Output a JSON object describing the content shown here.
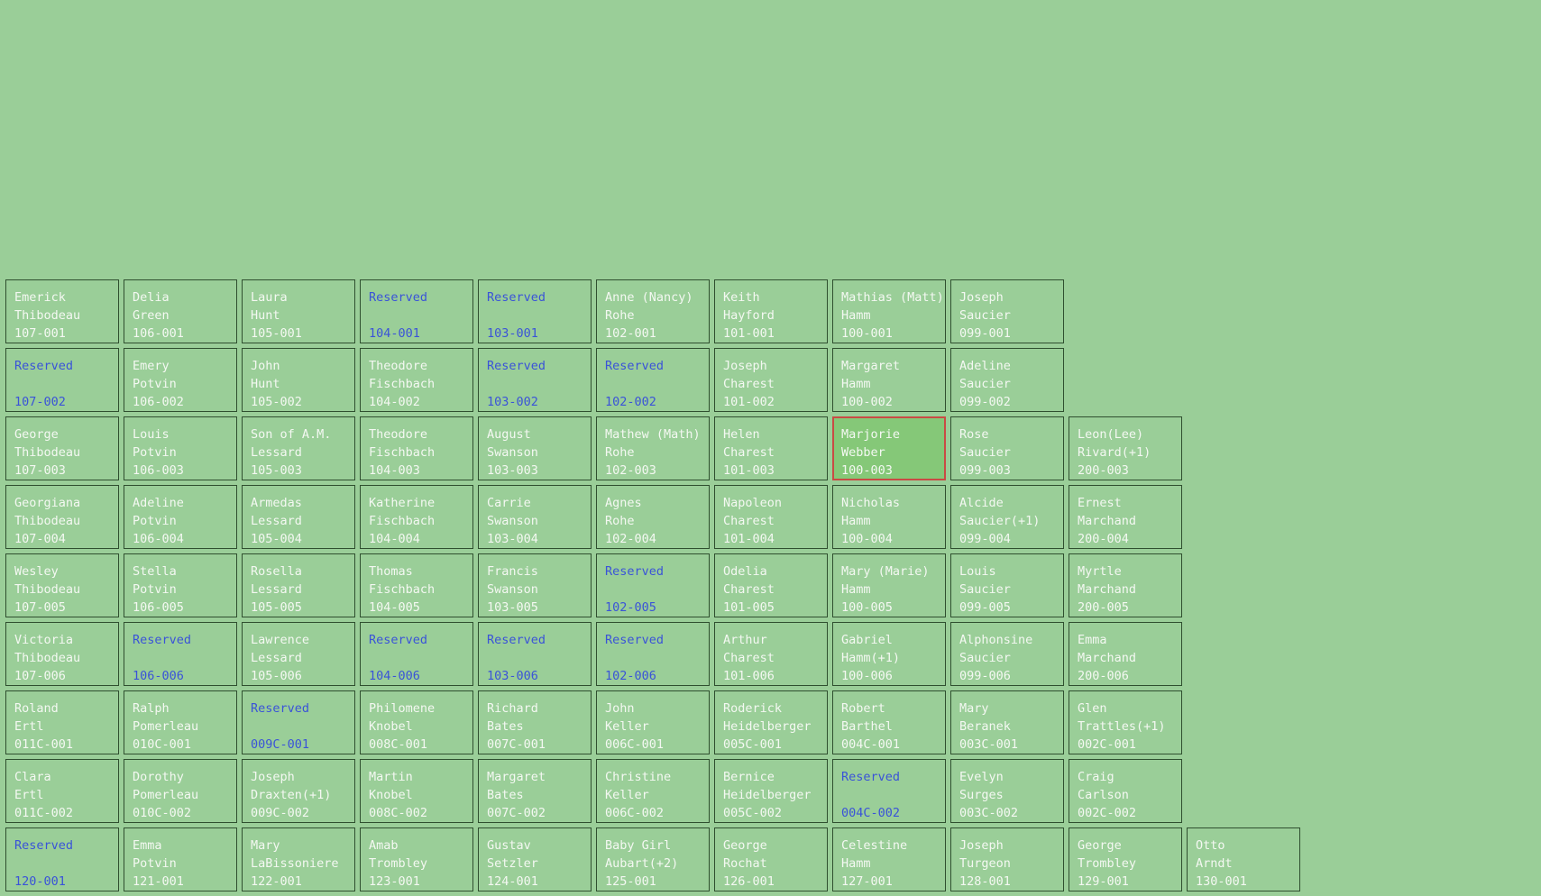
{
  "colors": {
    "background": "#9ace98",
    "border": "#2f4f2f",
    "text": "#f4f8f2",
    "reserved_text": "#3a53d8",
    "selected_fill": "#85c878",
    "selected_border": "#c94b44"
  },
  "rows": [
    {
      "plots": [
        {
          "col": 0,
          "first": "Emerick",
          "last": "Thibodeau",
          "id": "107-001"
        },
        {
          "col": 1,
          "first": "Delia",
          "last": "Green",
          "id": "106-001"
        },
        {
          "col": 2,
          "first": "Laura",
          "last": "Hunt",
          "id": "105-001"
        },
        {
          "col": 3,
          "first": "Reserved",
          "last": "",
          "id": "104-001",
          "reserved": true
        },
        {
          "col": 4,
          "first": "Reserved",
          "last": "",
          "id": "103-001",
          "reserved": true
        },
        {
          "col": 5,
          "first": "Anne (Nancy)",
          "last": "Rohe",
          "id": "102-001"
        },
        {
          "col": 6,
          "first": "Keith",
          "last": "Hayford",
          "id": "101-001"
        },
        {
          "col": 7,
          "first": "Mathias (Matt)",
          "last": "Hamm",
          "id": "100-001"
        },
        {
          "col": 8,
          "first": "Joseph",
          "last": "Saucier",
          "id": "099-001"
        }
      ]
    },
    {
      "plots": [
        {
          "col": 0,
          "first": "Reserved",
          "last": "",
          "id": "107-002",
          "reserved": true
        },
        {
          "col": 1,
          "first": "Emery",
          "last": "Potvin",
          "id": "106-002"
        },
        {
          "col": 2,
          "first": "John",
          "last": "Hunt",
          "id": "105-002"
        },
        {
          "col": 3,
          "first": "Theodore",
          "last": "Fischbach",
          "id": "104-002"
        },
        {
          "col": 4,
          "first": "Reserved",
          "last": "",
          "id": "103-002",
          "reserved": true
        },
        {
          "col": 5,
          "first": "Reserved",
          "last": "",
          "id": "102-002",
          "reserved": true
        },
        {
          "col": 6,
          "first": "Joseph",
          "last": "Charest",
          "id": "101-002"
        },
        {
          "col": 7,
          "first": "Margaret",
          "last": "Hamm",
          "id": "100-002"
        },
        {
          "col": 8,
          "first": "Adeline",
          "last": "Saucier",
          "id": "099-002"
        }
      ]
    },
    {
      "plots": [
        {
          "col": 0,
          "first": "George",
          "last": "Thibodeau",
          "id": "107-003"
        },
        {
          "col": 1,
          "first": "Louis",
          "last": "Potvin",
          "id": "106-003"
        },
        {
          "col": 2,
          "first": "Son of A.M.",
          "last": "Lessard",
          "id": "105-003"
        },
        {
          "col": 3,
          "first": "Theodore",
          "last": "Fischbach",
          "id": "104-003"
        },
        {
          "col": 4,
          "first": "August",
          "last": "Swanson",
          "id": "103-003"
        },
        {
          "col": 5,
          "first": "Mathew (Math)",
          "last": "Rohe",
          "id": "102-003"
        },
        {
          "col": 6,
          "first": "Helen",
          "last": "Charest",
          "id": "101-003"
        },
        {
          "col": 7,
          "first": "Marjorie",
          "last": "Webber",
          "id": "100-003",
          "selected": true
        },
        {
          "col": 8,
          "first": "Rose",
          "last": "Saucier",
          "id": "099-003"
        },
        {
          "col": 9,
          "first": "Leon(Lee)",
          "last": "Rivard(+1)",
          "id": "200-003"
        }
      ]
    },
    {
      "plots": [
        {
          "col": 0,
          "first": "Georgiana",
          "last": "Thibodeau",
          "id": "107-004"
        },
        {
          "col": 1,
          "first": "Adeline",
          "last": "Potvin",
          "id": "106-004"
        },
        {
          "col": 2,
          "first": "Armedas",
          "last": "Lessard",
          "id": "105-004"
        },
        {
          "col": 3,
          "first": "Katherine",
          "last": "Fischbach",
          "id": "104-004"
        },
        {
          "col": 4,
          "first": "Carrie",
          "last": "Swanson",
          "id": "103-004"
        },
        {
          "col": 5,
          "first": "Agnes",
          "last": "Rohe",
          "id": "102-004"
        },
        {
          "col": 6,
          "first": "Napoleon",
          "last": "Charest",
          "id": "101-004"
        },
        {
          "col": 7,
          "first": "Nicholas",
          "last": "Hamm",
          "id": "100-004"
        },
        {
          "col": 8,
          "first": "Alcide",
          "last": "Saucier(+1)",
          "id": "099-004"
        },
        {
          "col": 9,
          "first": "Ernest",
          "last": "Marchand",
          "id": "200-004"
        }
      ]
    },
    {
      "plots": [
        {
          "col": 0,
          "first": "Wesley",
          "last": "Thibodeau",
          "id": "107-005"
        },
        {
          "col": 1,
          "first": "Stella",
          "last": "Potvin",
          "id": "106-005"
        },
        {
          "col": 2,
          "first": "Rosella",
          "last": "Lessard",
          "id": "105-005"
        },
        {
          "col": 3,
          "first": "Thomas",
          "last": "Fischbach",
          "id": "104-005"
        },
        {
          "col": 4,
          "first": "Francis",
          "last": "Swanson",
          "id": "103-005"
        },
        {
          "col": 5,
          "first": "Reserved",
          "last": "",
          "id": "102-005",
          "reserved": true
        },
        {
          "col": 6,
          "first": "Odelia",
          "last": "Charest",
          "id": "101-005"
        },
        {
          "col": 7,
          "first": "Mary (Marie)",
          "last": "Hamm",
          "id": "100-005"
        },
        {
          "col": 8,
          "first": "Louis",
          "last": "Saucier",
          "id": "099-005"
        },
        {
          "col": 9,
          "first": "Myrtle",
          "last": "Marchand",
          "id": "200-005"
        }
      ]
    },
    {
      "plots": [
        {
          "col": 0,
          "first": "Victoria",
          "last": "Thibodeau",
          "id": "107-006"
        },
        {
          "col": 1,
          "first": "Reserved",
          "last": "",
          "id": "106-006",
          "reserved": true
        },
        {
          "col": 2,
          "first": "Lawrence",
          "last": "Lessard",
          "id": "105-006"
        },
        {
          "col": 3,
          "first": "Reserved",
          "last": "",
          "id": "104-006",
          "reserved": true
        },
        {
          "col": 4,
          "first": "Reserved",
          "last": "",
          "id": "103-006",
          "reserved": true
        },
        {
          "col": 5,
          "first": "Reserved",
          "last": "",
          "id": "102-006",
          "reserved": true
        },
        {
          "col": 6,
          "first": "Arthur",
          "last": "Charest",
          "id": "101-006"
        },
        {
          "col": 7,
          "first": "Gabriel",
          "last": "Hamm(+1)",
          "id": "100-006"
        },
        {
          "col": 8,
          "first": "Alphonsine",
          "last": "Saucier",
          "id": "099-006"
        },
        {
          "col": 9,
          "first": "Emma",
          "last": "Marchand",
          "id": "200-006"
        }
      ]
    },
    {
      "plots": [
        {
          "col": 0,
          "first": "Roland",
          "last": "Ertl",
          "id": "011C-001"
        },
        {
          "col": 1,
          "first": "Ralph",
          "last": "Pomerleau",
          "id": "010C-001"
        },
        {
          "col": 2,
          "first": "Reserved",
          "last": "",
          "id": "009C-001",
          "reserved": true
        },
        {
          "col": 3,
          "first": "Philomene",
          "last": "Knobel",
          "id": "008C-001"
        },
        {
          "col": 4,
          "first": "Richard",
          "last": "Bates",
          "id": "007C-001"
        },
        {
          "col": 5,
          "first": "John",
          "last": "Keller",
          "id": "006C-001"
        },
        {
          "col": 6,
          "first": "Roderick",
          "last": "Heidelberger",
          "id": "005C-001"
        },
        {
          "col": 7,
          "first": "Robert",
          "last": "Barthel",
          "id": "004C-001"
        },
        {
          "col": 8,
          "first": "Mary",
          "last": "Beranek",
          "id": "003C-001"
        },
        {
          "col": 9,
          "first": "Glen",
          "last": "Trattles(+1)",
          "id": "002C-001"
        }
      ]
    },
    {
      "plots": [
        {
          "col": 0,
          "first": "Clara",
          "last": "Ertl",
          "id": "011C-002"
        },
        {
          "col": 1,
          "first": "Dorothy",
          "last": "Pomerleau",
          "id": "010C-002"
        },
        {
          "col": 2,
          "first": "Joseph",
          "last": "Draxten(+1)",
          "id": "009C-002"
        },
        {
          "col": 3,
          "first": "Martin",
          "last": "Knobel",
          "id": "008C-002"
        },
        {
          "col": 4,
          "first": "Margaret",
          "last": "Bates",
          "id": "007C-002"
        },
        {
          "col": 5,
          "first": "Christine",
          "last": "Keller",
          "id": "006C-002"
        },
        {
          "col": 6,
          "first": "Bernice",
          "last": "Heidelberger",
          "id": "005C-002"
        },
        {
          "col": 7,
          "first": "Reserved",
          "last": "",
          "id": "004C-002",
          "reserved": true
        },
        {
          "col": 8,
          "first": "Evelyn",
          "last": "Surges",
          "id": "003C-002"
        },
        {
          "col": 9,
          "first": "Craig",
          "last": "Carlson",
          "id": "002C-002"
        }
      ]
    },
    {
      "plots": [
        {
          "col": 0,
          "first": "Reserved",
          "last": "",
          "id": "120-001",
          "reserved": true
        },
        {
          "col": 1,
          "first": "Emma",
          "last": "Potvin",
          "id": "121-001"
        },
        {
          "col": 2,
          "first": "Mary",
          "last": "LaBissoniere",
          "id": "122-001"
        },
        {
          "col": 3,
          "first": "Amab",
          "last": "Trombley",
          "id": "123-001"
        },
        {
          "col": 4,
          "first": "Gustav",
          "last": "Setzler",
          "id": "124-001"
        },
        {
          "col": 5,
          "first": "Baby Girl",
          "last": "Aubart(+2)",
          "id": "125-001"
        },
        {
          "col": 6,
          "first": "George",
          "last": "Rochat",
          "id": "126-001"
        },
        {
          "col": 7,
          "first": "Celestine",
          "last": "Hamm",
          "id": "127-001"
        },
        {
          "col": 8,
          "first": "Joseph",
          "last": "Turgeon",
          "id": "128-001"
        },
        {
          "col": 9,
          "first": "George",
          "last": "Trombley",
          "id": "129-001"
        },
        {
          "col": 10,
          "first": "Otto",
          "last": "Arndt",
          "id": "130-001"
        }
      ]
    }
  ]
}
